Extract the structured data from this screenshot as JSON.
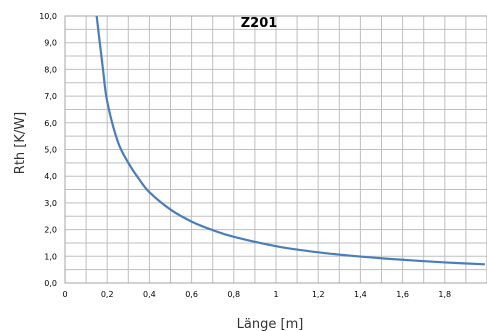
{
  "chart_data": {
    "type": "line",
    "title": "Z201",
    "xlabel": "Länge [m]",
    "ylabel": "Rth [K/W]",
    "xlim": [
      0,
      2.0
    ],
    "ylim": [
      0,
      10.0
    ],
    "grid": true,
    "legend": "none",
    "x_ticks": [
      "0",
      "0,2",
      "0,4",
      "0,6",
      "0,8",
      "1",
      "1,2",
      "1,4",
      "1,6",
      "1,8"
    ],
    "x_tick_values": [
      0,
      0.2,
      0.4,
      0.6,
      0.8,
      1.0,
      1.2,
      1.4,
      1.6,
      1.8
    ],
    "y_ticks": [
      "0,0",
      "1,0",
      "2,0",
      "3,0",
      "4,0",
      "5,0",
      "6,0",
      "7,0",
      "8,0",
      "9,0",
      "10,0"
    ],
    "y_tick_values": [
      0,
      1,
      2,
      3,
      4,
      5,
      6,
      7,
      8,
      9,
      10
    ],
    "series": [
      {
        "color": "#4a7ebb",
        "x": [
          0.15,
          0.18,
          0.2,
          0.25,
          0.3,
          0.35,
          0.4,
          0.5,
          0.6,
          0.7,
          0.8,
          1.0,
          1.2,
          1.4,
          1.6,
          1.8,
          1.99
        ],
        "y": [
          10.0,
          8.0,
          6.8,
          5.3,
          4.5,
          3.9,
          3.4,
          2.75,
          2.3,
          1.98,
          1.73,
          1.38,
          1.15,
          0.99,
          0.87,
          0.77,
          0.7
        ]
      }
    ]
  }
}
